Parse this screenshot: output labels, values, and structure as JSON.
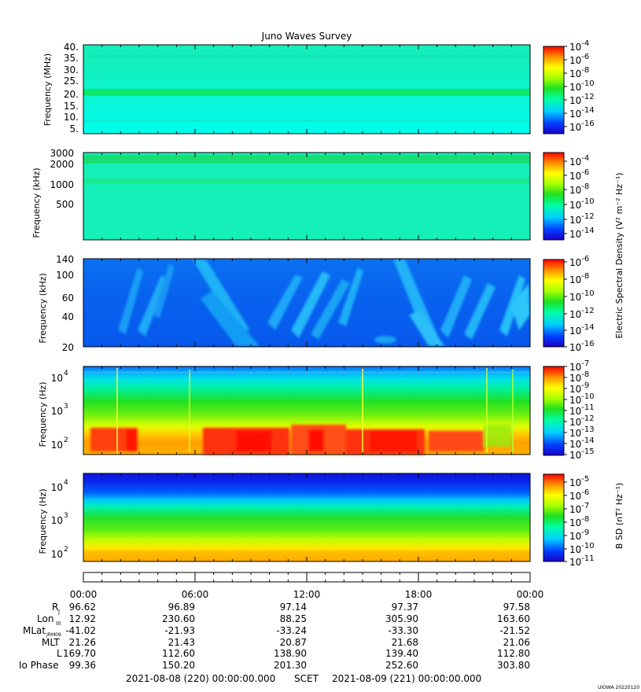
{
  "title": "Juno Waves Survey",
  "footer": {
    "start": "2021-08-08 (220) 00:00:00.000",
    "mid": "SCET",
    "end": "2021-08-09 (221) 00:00:00.000",
    "stamp": "UIOWA 20220120"
  },
  "colorbar_labels": {
    "e": "Electric Spectral Density (V² m⁻² Hz⁻¹)",
    "b": "B SD (nT² Hz⁻¹)"
  },
  "ephemeris": {
    "times": [
      "00:00",
      "06:00",
      "12:00",
      "18:00",
      "00:00"
    ],
    "rows": [
      {
        "label": "Rj",
        "values": [
          "96.62",
          "96.89",
          "97.14",
          "97.37",
          "97.58"
        ]
      },
      {
        "label": "LonIII",
        "values": [
          "12.92",
          "230.60",
          "88.25",
          "305.90",
          "163.60"
        ]
      },
      {
        "label": "MLatJRM09",
        "values": [
          "-41.02",
          "-21.93",
          "-33.24",
          "-33.30",
          "-21.52"
        ]
      },
      {
        "label": "MLT",
        "values": [
          "21.26",
          "21.43",
          "20.87",
          "21.68",
          "21.06"
        ]
      },
      {
        "label": "L",
        "values": [
          "169.70",
          "112.60",
          "138.90",
          "139.40",
          "112.80"
        ]
      },
      {
        "label": "Io Phase",
        "values": [
          "99.36",
          "150.20",
          "201.30",
          "252.60",
          "303.80"
        ]
      }
    ]
  },
  "chart_data": [
    {
      "type": "heatmap",
      "title": "Juno Waves Survey",
      "ylabel": "Frequency (MHz)",
      "yticks": [
        "40.",
        "35.",
        "30.",
        "25.",
        "20.",
        "15.",
        "10.",
        "5."
      ],
      "colorbar_ticks": [
        "10-4",
        "10-6",
        "10-8",
        "10-10",
        "10-12",
        "10-14",
        "10-16"
      ],
      "xlim": [
        "00:00",
        "00:00"
      ]
    },
    {
      "type": "heatmap",
      "ylabel": "Frequency (kHz)",
      "yticks": [
        "3000",
        "2000",
        "1000",
        "500"
      ],
      "colorbar_ticks": [
        "10-4",
        "10-6",
        "10-8",
        "10-10",
        "10-12",
        "10-14"
      ]
    },
    {
      "type": "heatmap",
      "ylabel": "Frequency (kHz)",
      "yticks": [
        "140",
        "100",
        "60",
        "40",
        "20"
      ],
      "colorbar_ticks": [
        "10-6",
        "10-8",
        "10-10",
        "10-12",
        "10-14",
        "10-16"
      ],
      "colorbar_title": "Electric Spectral Density (V² m⁻² Hz⁻¹)"
    },
    {
      "type": "heatmap",
      "ylabel": "Frequency (Hz)",
      "yticks": [
        "10^4",
        "10^3",
        "10^2"
      ],
      "colorbar_ticks": [
        "10-7",
        "10-8",
        "10-9",
        "10-10",
        "10-11",
        "10-12",
        "10-13",
        "10-14",
        "10-15"
      ]
    },
    {
      "type": "heatmap",
      "ylabel": "Frequency (Hz)",
      "yticks": [
        "10^4",
        "10^3",
        "10^2"
      ],
      "colorbar_ticks": [
        "10-5",
        "10-6",
        "10-7",
        "10-8",
        "10-9",
        "10-10",
        "10-11"
      ],
      "colorbar_title": "B SD (nT² Hz⁻¹)"
    }
  ]
}
